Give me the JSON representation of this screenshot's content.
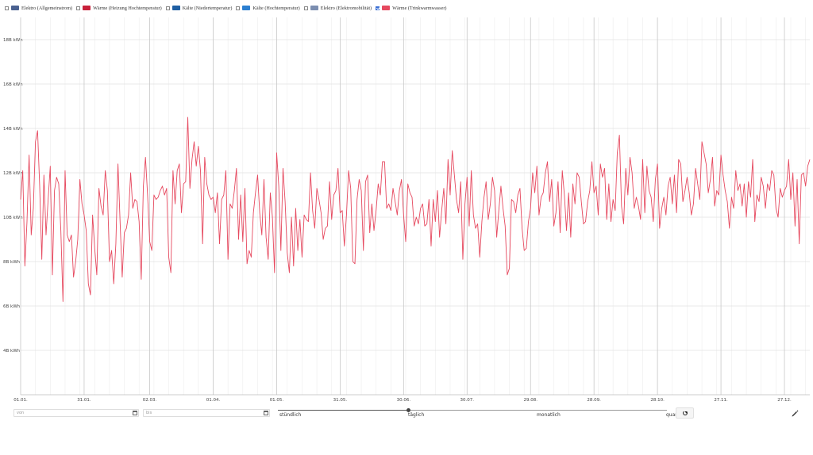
{
  "legend": [
    {
      "label": "Elektro (Allgemeinstrom)",
      "color": "#4a6190",
      "checked": false
    },
    {
      "label": "Wärme (Heizung Hochtemperatur)",
      "color": "#c8203a",
      "checked": false
    },
    {
      "label": "Kälte (Niedertemperatur)",
      "color": "#1f5fa3",
      "checked": false
    },
    {
      "label": "Kälte (Hochtemperatur)",
      "color": "#2c7fd0",
      "checked": false
    },
    {
      "label": "Elektro (Elektromobilität)",
      "color": "#7b8eb0",
      "checked": false
    },
    {
      "label": "Wärme (Trinkwarmwasser)",
      "color": "#e6495f",
      "checked": true
    }
  ],
  "controls": {
    "from_placeholder": "von",
    "to_placeholder": "bis",
    "slider_labels": [
      "stündlich",
      "täglich",
      "monatlich",
      "quar"
    ],
    "slider_value": "täglich"
  },
  "chart_data": {
    "type": "line",
    "title": "",
    "xlabel": "",
    "ylabel": "",
    "series": [
      {
        "color": "#e6495f",
        "x_start": "01.01.",
        "x_end": "31.12.",
        "values": [
          108,
          121,
          78,
          98,
          128,
          92,
          104,
          134,
          139,
          114,
          81,
          119,
          92,
          108,
          123,
          74,
          112,
          118,
          115,
          94,
          62,
          121,
          92,
          89,
          92,
          73,
          80,
          90,
          117,
          106,
          101,
          94,
          70,
          65,
          101,
          86,
          74,
          113,
          105,
          101,
          121,
          112,
          80,
          85,
          70,
          88,
          124,
          98,
          73,
          93,
          95,
          101,
          120,
          104,
          108,
          107,
          98,
          72,
          114,
          127,
          110,
          89,
          85,
          110,
          108,
          109,
          112,
          114,
          110,
          113,
          82,
          75,
          121,
          106,
          121,
          124,
          102,
          115,
          116,
          145,
          113,
          126,
          134,
          123,
          132,
          121,
          88,
          127,
          115,
          110,
          108,
          109,
          102,
          111,
          88,
          108,
          110,
          121,
          81,
          106,
          104,
          112,
          122,
          90,
          110,
          89,
          113,
          79,
          85,
          82,
          102,
          111,
          119,
          102,
          92,
          117,
          91,
          81,
          111,
          100,
          75,
          129,
          114,
          85,
          122,
          107,
          84,
          75,
          100,
          78,
          104,
          85,
          99,
          82,
          101,
          99,
          98,
          120,
          103,
          95,
          113,
          108,
          102,
          90,
          95,
          96,
          116,
          99,
          110,
          112,
          122,
          102,
          103,
          87,
          101,
          121,
          113,
          80,
          79,
          108,
          117,
          112,
          85,
          116,
          119,
          93,
          106,
          94,
          103,
          115,
          110,
          125,
          125,
          104,
          106,
          103,
          113,
          107,
          101,
          112,
          117,
          101,
          89,
          115,
          111,
          109,
          96,
          100,
          97,
          104,
          106,
          96,
          97,
          108,
          87,
          108,
          98,
          112,
          91,
          103,
          113,
          97,
          126,
          110,
          130,
          119,
          108,
          102,
          116,
          81,
          106,
          118,
          96,
          121,
          101,
          95,
          97,
          82,
          98,
          109,
          116,
          99,
          106,
          118,
          112,
          91,
          103,
          114,
          104,
          96,
          74,
          77,
          108,
          107,
          102,
          110,
          113,
          95,
          85,
          86,
          98,
          104,
          120,
          111,
          123,
          101,
          109,
          111,
          120,
          125,
          107,
          117,
          96,
          102,
          116,
          93,
          121,
          110,
          94,
          111,
          91,
          115,
          106,
          120,
          118,
          107,
          97,
          98,
          107,
          112,
          125,
          111,
          114,
          101,
          124,
          118,
          122,
          99,
          115,
          98,
          108,
          103,
          129,
          137,
          105,
          97,
          122,
          110,
          127,
          120,
          104,
          109,
          105,
          99,
          126,
          102,
          123,
          112,
          109,
          98,
          117,
          124,
          95,
          104,
          109,
          101,
          114,
          118,
          106,
          119,
          102,
          126,
          124,
          107,
          112,
          118,
          111,
          101,
          106,
          122,
          115,
          108,
          134,
          129,
          124,
          111,
          117,
          127,
          105,
          112,
          110,
          128,
          119,
          112,
          107,
          95,
          109,
          104,
          121,
          112,
          115,
          105,
          115,
          100,
          116,
          109,
          126,
          98,
          110,
          107,
          118,
          114,
          104,
          115,
          112,
          121,
          119,
          104,
          100,
          113,
          109,
          112,
          114,
          126,
          108,
          120,
          96,
          117,
          88,
          119,
          120,
          114,
          123,
          126
        ]
      }
    ],
    "x_ticks": [
      "01.01.",
      "31.01.",
      "02.03.",
      "01.04.",
      "01.05.",
      "31.05.",
      "30.06.",
      "30.07.",
      "29.08.",
      "28.09.",
      "28.10.",
      "27.11.",
      "27.12."
    ],
    "y_ticks": [
      "4B kWh",
      "6B kWh",
      "8B kWh",
      "10B kWh",
      "12B kWh",
      "14B kWh",
      "16B kWh",
      "18B kWh"
    ],
    "ylim": [
      2,
      19
    ],
    "grid": true
  }
}
